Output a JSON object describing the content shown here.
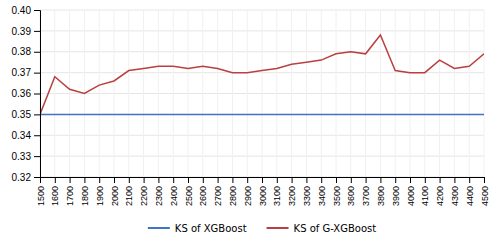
{
  "chart_data": {
    "type": "line",
    "x": [
      1500,
      1600,
      1700,
      1800,
      1900,
      2000,
      2100,
      2200,
      2300,
      2400,
      2500,
      2600,
      2700,
      2800,
      2900,
      3000,
      3100,
      3200,
      3300,
      3400,
      3500,
      3600,
      3700,
      3800,
      3900,
      4000,
      4100,
      4200,
      4300,
      4400,
      4500
    ],
    "series": [
      {
        "name": "KS of XGBoost",
        "color": "#4472C4",
        "values": [
          0.35,
          0.35,
          0.35,
          0.35,
          0.35,
          0.35,
          0.35,
          0.35,
          0.35,
          0.35,
          0.35,
          0.35,
          0.35,
          0.35,
          0.35,
          0.35,
          0.35,
          0.35,
          0.35,
          0.35,
          0.35,
          0.35,
          0.35,
          0.35,
          0.35,
          0.35,
          0.35,
          0.35,
          0.35,
          0.35,
          0.35
        ]
      },
      {
        "name": "KS of G-XGBoost",
        "color": "#B94040",
        "values": [
          0.35,
          0.368,
          0.362,
          0.36,
          0.364,
          0.366,
          0.371,
          0.372,
          0.373,
          0.373,
          0.372,
          0.373,
          0.372,
          0.37,
          0.37,
          0.371,
          0.372,
          0.374,
          0.375,
          0.376,
          0.379,
          0.38,
          0.379,
          0.388,
          0.371,
          0.37,
          0.37,
          0.376,
          0.372,
          0.373,
          0.379
        ]
      }
    ],
    "xlim": [
      1500,
      4500
    ],
    "xticks": [
      1500,
      1600,
      1700,
      1800,
      1900,
      2000,
      2100,
      2200,
      2300,
      2400,
      2500,
      2600,
      2700,
      2800,
      2900,
      3000,
      3100,
      3200,
      3300,
      3400,
      3500,
      3600,
      3700,
      3800,
      3900,
      4000,
      4100,
      4200,
      4300,
      4400,
      4500
    ],
    "ylim": [
      0.32,
      0.4
    ],
    "yticks": [
      0.32,
      0.33,
      0.34,
      0.35,
      0.36,
      0.37,
      0.38,
      0.39,
      {
        "value": 0.4,
        "label": "0.40"
      }
    ],
    "grid": true,
    "legend": "bottom"
  }
}
